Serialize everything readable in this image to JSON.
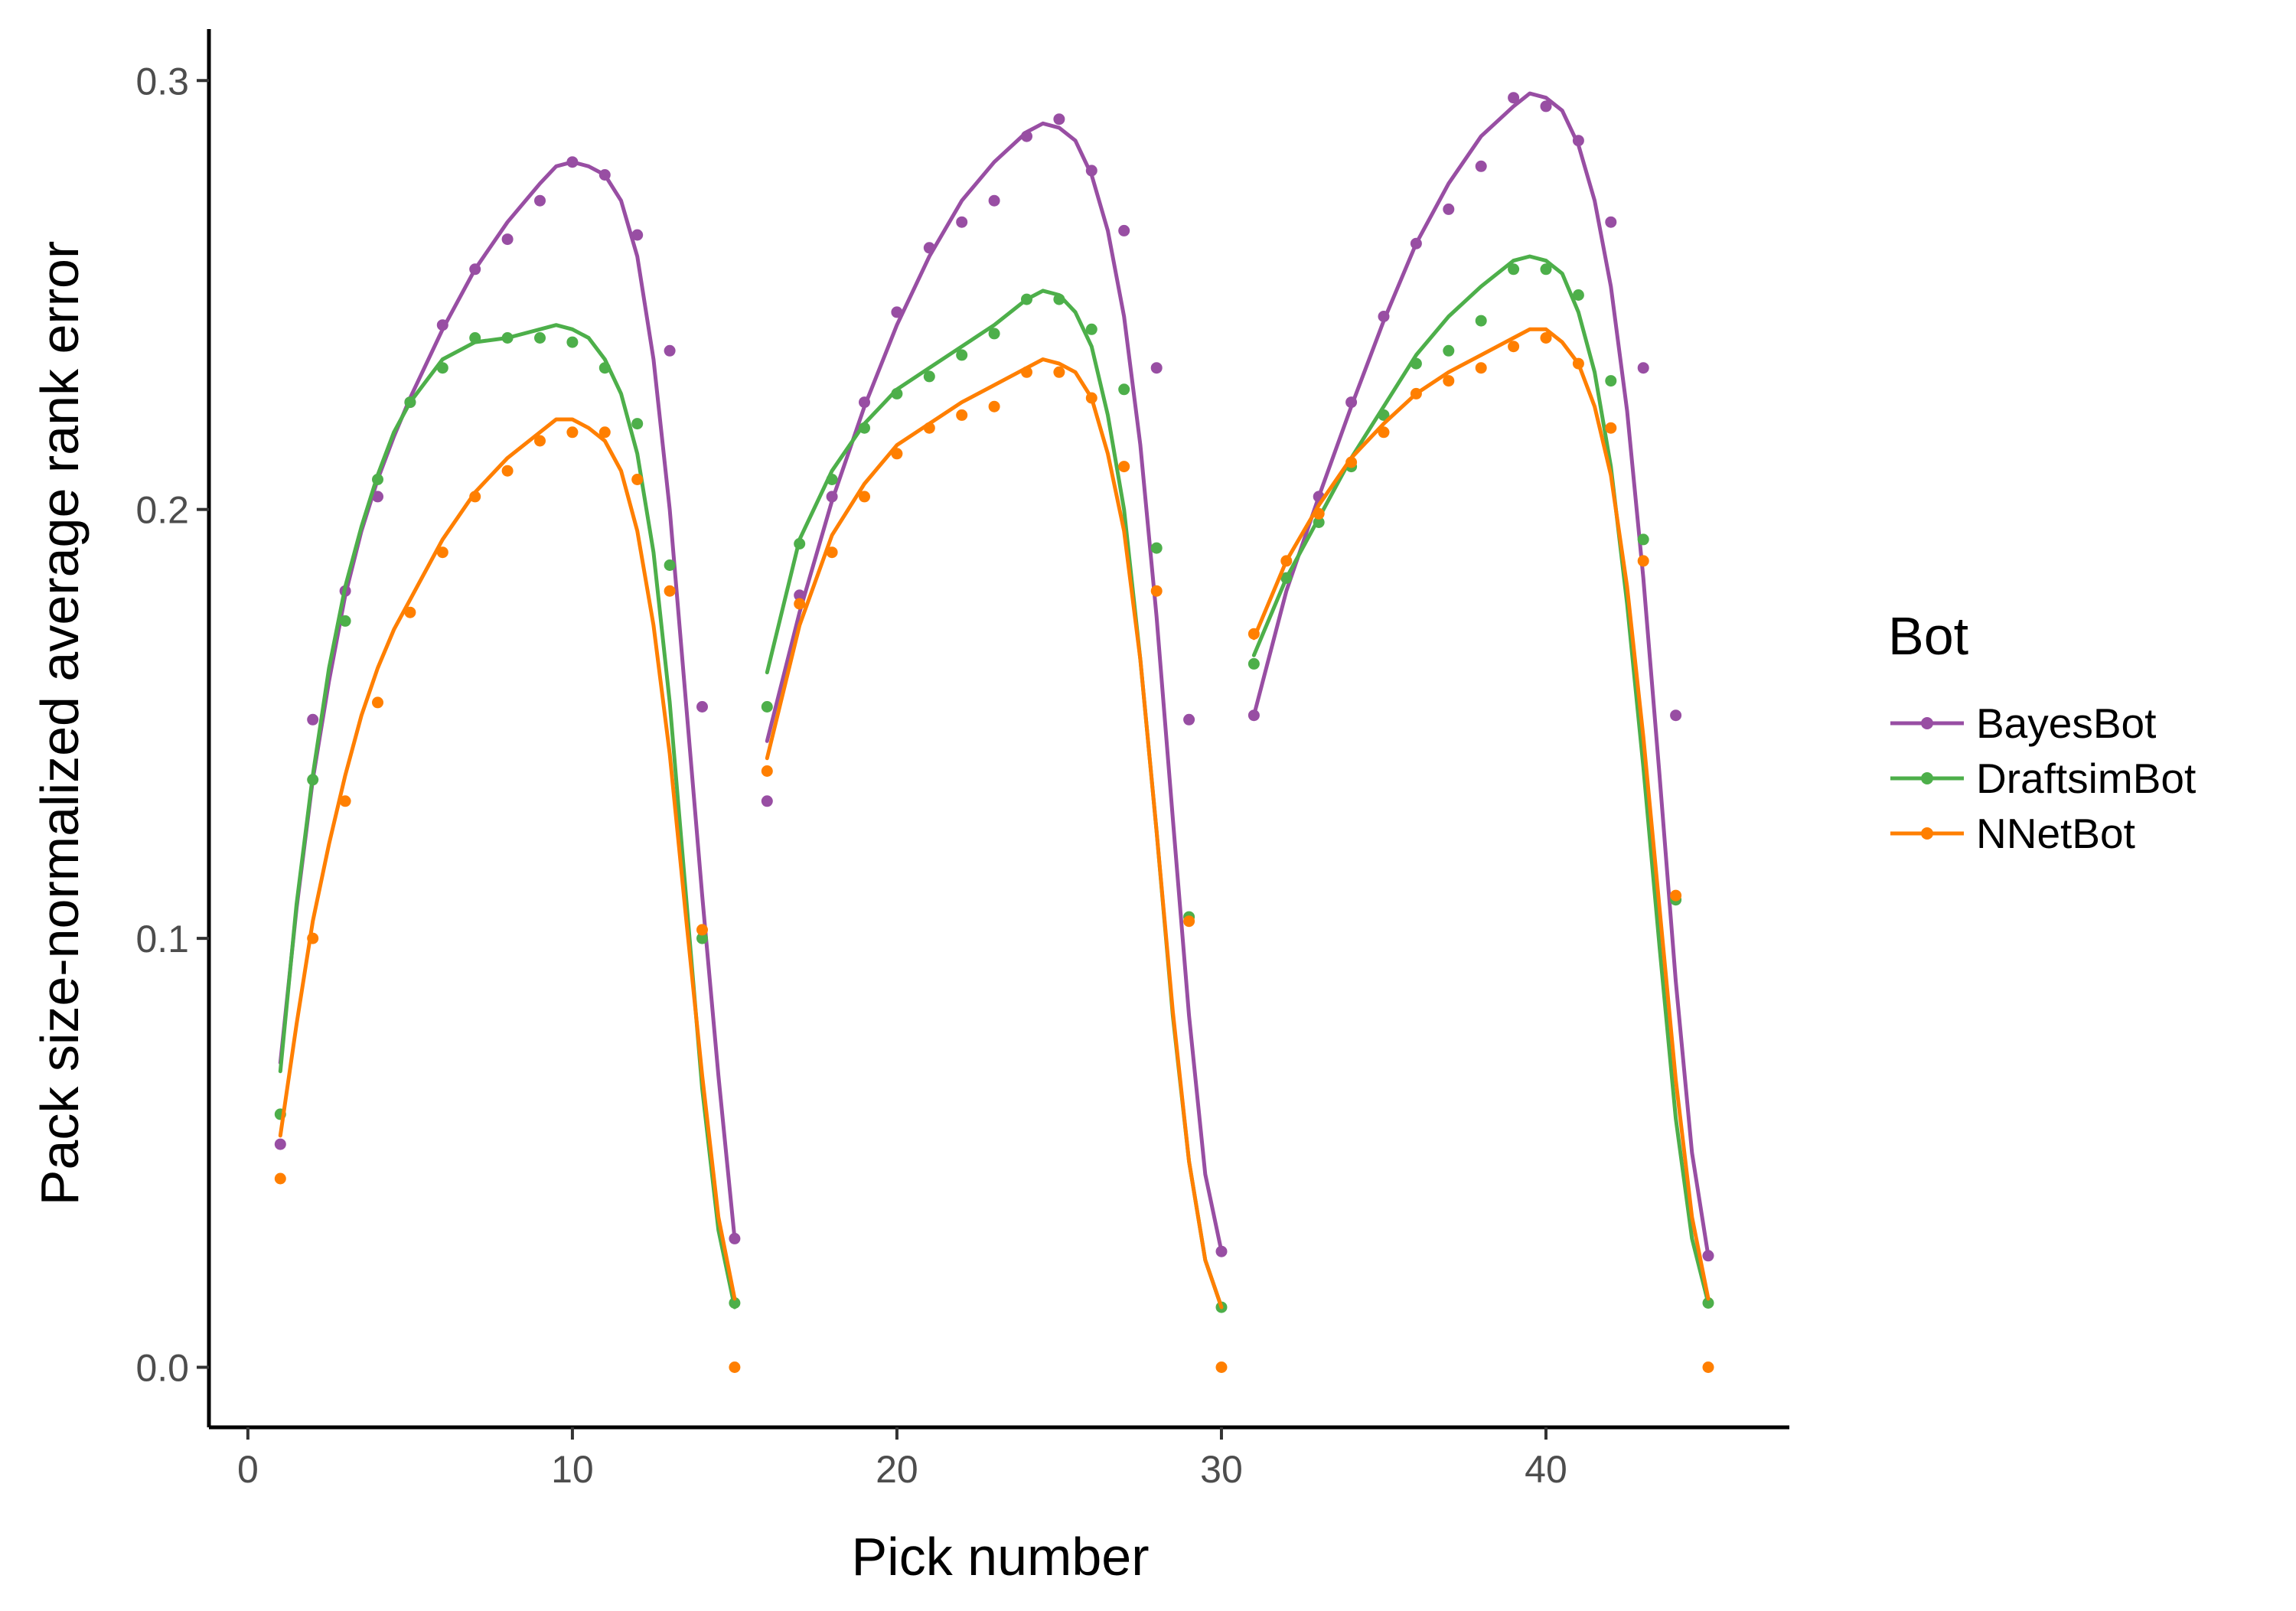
{
  "chart_data": {
    "type": "scatter",
    "xlabel": "Pick number",
    "ylabel": "Pack size-normalized average rank error",
    "xlim": [
      -1.2,
      47.5
    ],
    "ylim": [
      -0.014,
      0.312
    ],
    "x_ticks": [
      0,
      10,
      20,
      30,
      40
    ],
    "y_ticks": [
      0.0,
      0.1,
      0.2,
      0.3
    ],
    "x_tick_labels": [
      "0",
      "10",
      "20",
      "30",
      "40"
    ],
    "y_tick_labels": [
      "0.0",
      "0.1",
      "0.2",
      "0.3"
    ],
    "grid": false,
    "legend": {
      "title": "Bot",
      "position": "right"
    },
    "series": [
      {
        "name": "BayesBot",
        "color": "#984EA3",
        "points": {
          "x": [
            1,
            2,
            3,
            4,
            5,
            6,
            7,
            8,
            9,
            10,
            11,
            12,
            13,
            14,
            15,
            16,
            17,
            18,
            19,
            20,
            21,
            22,
            23,
            24,
            25,
            26,
            27,
            28,
            29,
            30,
            31,
            32,
            33,
            34,
            35,
            36,
            37,
            38,
            39,
            40,
            41,
            42,
            43,
            44,
            45
          ],
          "y": [
            0.052,
            0.151,
            0.181,
            0.203,
            0.225,
            0.243,
            0.256,
            0.263,
            0.272,
            0.281,
            0.278,
            0.264,
            0.237,
            0.154,
            0.03,
            0.132,
            0.18,
            0.203,
            0.225,
            0.246,
            0.261,
            0.267,
            0.272,
            0.287,
            0.291,
            0.279,
            0.265,
            0.233,
            0.151,
            0.027,
            0.152,
            0.184,
            0.203,
            0.225,
            0.245,
            0.262,
            0.27,
            0.28,
            0.296,
            0.294,
            0.286,
            0.267,
            0.233,
            0.152,
            0.026
          ]
        },
        "smooth": [
          {
            "x": [
              1,
              1.5,
              2,
              2.5,
              3,
              3.5,
              4,
              4.5,
              5,
              6,
              7,
              8,
              9,
              9.5,
              10,
              10.5,
              11,
              11.5,
              12,
              12.5,
              13,
              13.5,
              14,
              14.5,
              15
            ],
            "y": [
              0.071,
              0.107,
              0.137,
              0.16,
              0.18,
              0.195,
              0.207,
              0.217,
              0.226,
              0.242,
              0.256,
              0.267,
              0.276,
              0.28,
              0.281,
              0.28,
              0.278,
              0.272,
              0.259,
              0.235,
              0.2,
              0.155,
              0.11,
              0.068,
              0.03
            ]
          },
          {
            "x": [
              16,
              17,
              18,
              19,
              20,
              21,
              22,
              23,
              24,
              24.5,
              25,
              25.5,
              26,
              26.5,
              27,
              27.5,
              28,
              28.5,
              29,
              29.5,
              30
            ],
            "y": [
              0.146,
              0.176,
              0.202,
              0.224,
              0.243,
              0.259,
              0.272,
              0.281,
              0.288,
              0.29,
              0.289,
              0.286,
              0.278,
              0.265,
              0.245,
              0.215,
              0.175,
              0.128,
              0.082,
              0.045,
              0.027
            ]
          },
          {
            "x": [
              31,
              32,
              33,
              34,
              35,
              36,
              37,
              38,
              39,
              39.5,
              40,
              40.5,
              41,
              41.5,
              42,
              42.5,
              43,
              43.5,
              44,
              44.5,
              45
            ],
            "y": [
              0.152,
              0.181,
              0.203,
              0.224,
              0.244,
              0.262,
              0.276,
              0.287,
              0.294,
              0.297,
              0.296,
              0.293,
              0.285,
              0.272,
              0.252,
              0.223,
              0.184,
              0.138,
              0.09,
              0.05,
              0.026
            ]
          }
        ]
      },
      {
        "name": "DraftsimBot",
        "color": "#4DAF4A",
        "points": {
          "x": [
            1,
            2,
            3,
            4,
            5,
            6,
            7,
            8,
            9,
            10,
            11,
            12,
            13,
            14,
            15,
            16,
            17,
            18,
            19,
            20,
            21,
            22,
            23,
            24,
            25,
            26,
            27,
            28,
            29,
            30,
            31,
            32,
            33,
            34,
            35,
            36,
            37,
            38,
            39,
            40,
            41,
            42,
            43,
            44,
            45
          ],
          "y": [
            0.059,
            0.137,
            0.174,
            0.207,
            0.225,
            0.233,
            0.24,
            0.24,
            0.24,
            0.239,
            0.233,
            0.22,
            0.187,
            0.1,
            0.015,
            0.154,
            0.192,
            0.207,
            0.219,
            0.227,
            0.231,
            0.236,
            0.241,
            0.249,
            0.249,
            0.242,
            0.228,
            0.191,
            0.105,
            0.014,
            0.164,
            0.184,
            0.197,
            0.21,
            0.222,
            0.234,
            0.237,
            0.244,
            0.256,
            0.256,
            0.25,
            0.23,
            0.193,
            0.109,
            0.015
          ]
        },
        "smooth": [
          {
            "x": [
              1,
              1.5,
              2,
              2.5,
              3,
              3.5,
              4,
              4.5,
              5,
              6,
              7,
              8,
              9,
              9.5,
              10,
              10.5,
              11,
              11.5,
              12,
              12.5,
              13,
              13.5,
              14,
              14.5,
              15
            ],
            "y": [
              0.069,
              0.108,
              0.138,
              0.163,
              0.182,
              0.196,
              0.208,
              0.218,
              0.225,
              0.235,
              0.239,
              0.24,
              0.242,
              0.243,
              0.242,
              0.24,
              0.235,
              0.227,
              0.213,
              0.19,
              0.155,
              0.11,
              0.065,
              0.032,
              0.014
            ]
          },
          {
            "x": [
              16,
              17,
              18,
              19,
              20,
              21,
              22,
              23,
              24,
              24.5,
              25,
              25.5,
              26,
              26.5,
              27,
              27.5,
              28,
              28.5,
              29,
              29.5,
              30
            ],
            "y": [
              0.162,
              0.193,
              0.209,
              0.22,
              0.228,
              0.233,
              0.238,
              0.243,
              0.249,
              0.251,
              0.25,
              0.246,
              0.238,
              0.222,
              0.2,
              0.165,
              0.125,
              0.082,
              0.048,
              0.025,
              0.014
            ]
          },
          {
            "x": [
              31,
              32,
              33,
              34,
              35,
              36,
              37,
              38,
              39,
              39.5,
              40,
              40.5,
              41,
              41.5,
              42,
              42.5,
              43,
              43.5,
              44,
              44.5,
              45
            ],
            "y": [
              0.166,
              0.184,
              0.198,
              0.212,
              0.224,
              0.236,
              0.245,
              0.252,
              0.258,
              0.259,
              0.258,
              0.255,
              0.246,
              0.232,
              0.21,
              0.178,
              0.14,
              0.098,
              0.058,
              0.03,
              0.015
            ]
          }
        ]
      },
      {
        "name": "NNetBot",
        "color": "#FF7F00",
        "points": {
          "x": [
            1,
            2,
            3,
            4,
            5,
            6,
            7,
            8,
            9,
            10,
            11,
            12,
            13,
            14,
            15,
            16,
            17,
            18,
            19,
            20,
            21,
            22,
            23,
            24,
            25,
            26,
            27,
            28,
            29,
            30,
            31,
            32,
            33,
            34,
            35,
            36,
            37,
            38,
            39,
            40,
            41,
            42,
            43,
            44,
            45
          ],
          "y": [
            0.044,
            0.1,
            0.132,
            0.155,
            0.176,
            0.19,
            0.203,
            0.209,
            0.216,
            0.218,
            0.218,
            0.207,
            0.181,
            0.102,
            0.0,
            0.139,
            0.178,
            0.19,
            0.203,
            0.213,
            0.219,
            0.222,
            0.224,
            0.232,
            0.232,
            0.226,
            0.21,
            0.181,
            0.104,
            0.0,
            0.171,
            0.188,
            0.199,
            0.211,
            0.218,
            0.227,
            0.23,
            0.233,
            0.238,
            0.24,
            0.234,
            0.219,
            0.188,
            0.11,
            0.0
          ]
        },
        "smooth": [
          {
            "x": [
              1,
              1.5,
              2,
              2.5,
              3,
              3.5,
              4,
              4.5,
              5,
              6,
              7,
              8,
              9,
              9.5,
              10,
              10.5,
              11,
              11.5,
              12,
              12.5,
              13,
              13.5,
              14,
              14.5,
              15
            ],
            "y": [
              0.054,
              0.08,
              0.104,
              0.122,
              0.138,
              0.152,
              0.163,
              0.172,
              0.179,
              0.193,
              0.204,
              0.212,
              0.218,
              0.221,
              0.221,
              0.219,
              0.216,
              0.209,
              0.195,
              0.173,
              0.143,
              0.105,
              0.068,
              0.035,
              0.016
            ]
          },
          {
            "x": [
              16,
              17,
              18,
              19,
              20,
              21,
              22,
              23,
              24,
              24.5,
              25,
              25.5,
              26,
              26.5,
              27,
              27.5,
              28,
              28.5,
              29,
              29.5,
              30
            ],
            "y": [
              0.142,
              0.173,
              0.194,
              0.206,
              0.215,
              0.22,
              0.225,
              0.229,
              0.233,
              0.235,
              0.234,
              0.232,
              0.226,
              0.213,
              0.195,
              0.165,
              0.125,
              0.083,
              0.048,
              0.025,
              0.014
            ]
          },
          {
            "x": [
              31,
              32,
              33,
              34,
              35,
              36,
              37,
              38,
              39,
              39.5,
              40,
              40.5,
              41,
              41.5,
              42,
              42.5,
              43,
              43.5,
              44,
              44.5,
              45
            ],
            "y": [
              0.17,
              0.188,
              0.201,
              0.212,
              0.22,
              0.227,
              0.232,
              0.236,
              0.24,
              0.242,
              0.242,
              0.239,
              0.234,
              0.224,
              0.208,
              0.182,
              0.147,
              0.107,
              0.067,
              0.035,
              0.016
            ]
          }
        ]
      }
    ]
  }
}
